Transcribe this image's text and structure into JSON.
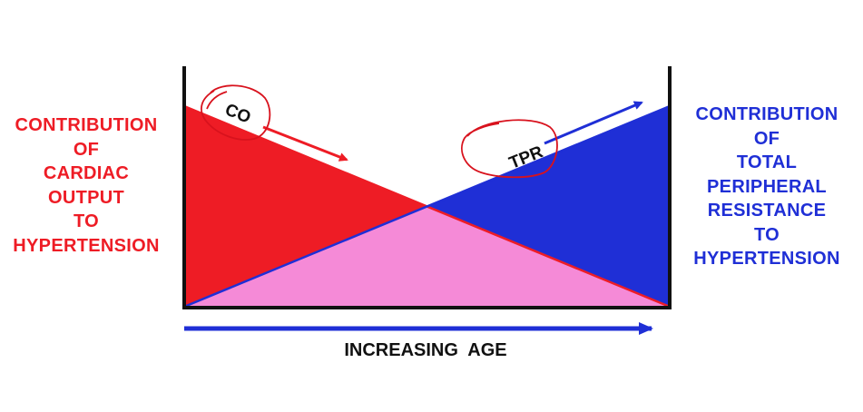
{
  "colors": {
    "red": "#ee1c25",
    "blue": "#1f2fd6",
    "pink": "#f58ad7",
    "ink": "#111111",
    "annotation": "#d8121d"
  },
  "left_label": {
    "lines": [
      "CONTRIBUTION",
      "OF",
      "CARDIAC",
      "OUTPUT",
      "TO",
      "HYPERTENSION"
    ]
  },
  "right_label": {
    "lines": [
      "CONTRIBUTION",
      "OF",
      "TOTAL",
      "PERIPHERAL",
      "RESISTANCE",
      "TO",
      "HYPERTENSION"
    ]
  },
  "diagram": {
    "co_label": "CO",
    "tpr_label": "TPR",
    "x_axis_label": "INCREASING  AGE"
  }
}
